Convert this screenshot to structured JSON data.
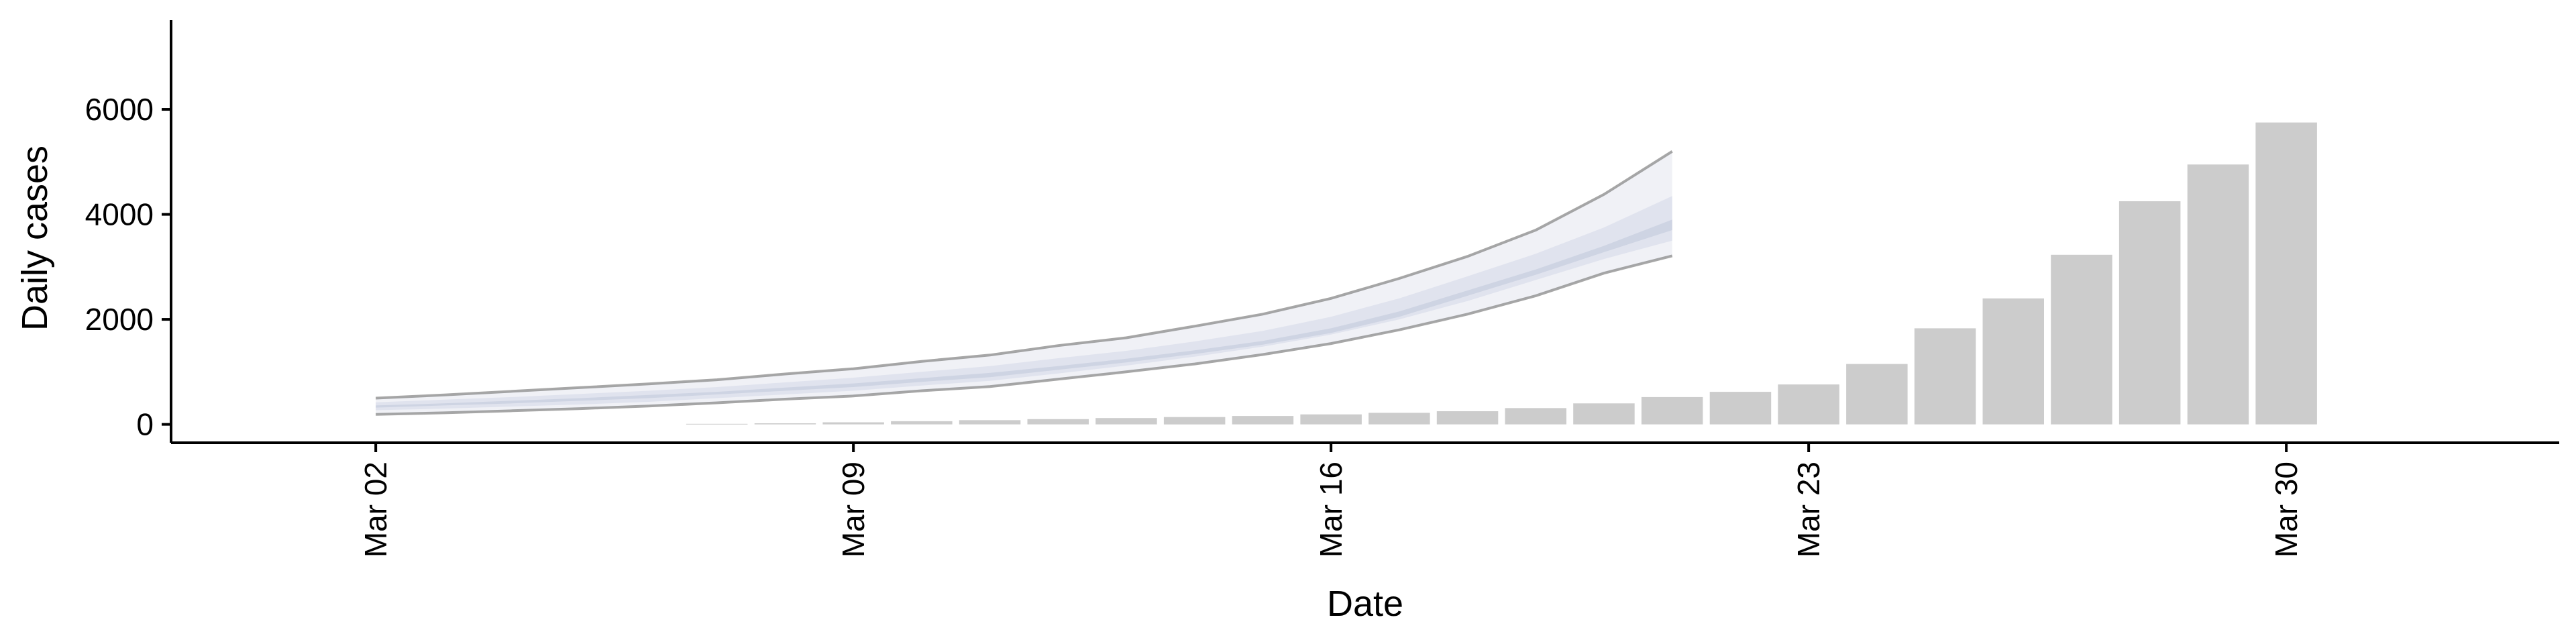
{
  "chart_data": {
    "type": "bar",
    "xlabel": "Date",
    "ylabel": "Daily cases",
    "ylim": [
      -350,
      7700
    ],
    "y_ticks": [
      0,
      2000,
      4000,
      6000
    ],
    "y_tick_labels": [
      "0",
      "2000",
      "4000",
      "6000"
    ],
    "x_ticks": [
      "2020-03-02",
      "2020-03-09",
      "2020-03-16",
      "2020-03-23",
      "2020-03-30"
    ],
    "x_tick_labels": [
      "Mar 02",
      "Mar 09",
      "Mar 16",
      "Mar 23",
      "Mar 30"
    ],
    "x_range": [
      "2020-02-28",
      "2020-04-03"
    ],
    "grid": false,
    "legend": "none",
    "bars": {
      "dates": [
        "2020-03-07",
        "2020-03-08",
        "2020-03-09",
        "2020-03-10",
        "2020-03-11",
        "2020-03-12",
        "2020-03-13",
        "2020-03-14",
        "2020-03-15",
        "2020-03-16",
        "2020-03-17",
        "2020-03-18",
        "2020-03-19",
        "2020-03-20",
        "2020-03-21",
        "2020-03-22",
        "2020-03-23",
        "2020-03-24",
        "2020-03-25",
        "2020-03-26",
        "2020-03-27",
        "2020-03-28",
        "2020-03-29",
        "2020-03-30"
      ],
      "values": [
        10,
        20,
        40,
        60,
        80,
        100,
        120,
        140,
        160,
        190,
        220,
        250,
        310,
        400,
        520,
        620,
        760,
        1150,
        1830,
        2400,
        3230,
        4250,
        4950,
        5750
      ],
      "color": "#cccccc"
    },
    "forecast": {
      "dates": [
        "2020-03-02",
        "2020-03-03",
        "2020-03-04",
        "2020-03-05",
        "2020-03-06",
        "2020-03-07",
        "2020-03-08",
        "2020-03-09",
        "2020-03-10",
        "2020-03-11",
        "2020-03-12",
        "2020-03-13",
        "2020-03-14",
        "2020-03-15",
        "2020-03-16",
        "2020-03-17",
        "2020-03-18",
        "2020-03-19",
        "2020-03-20",
        "2020-03-21"
      ],
      "outer_upper": [
        500,
        560,
        630,
        700,
        770,
        850,
        960,
        1060,
        1200,
        1320,
        1500,
        1650,
        1870,
        2100,
        2400,
        2780,
        3200,
        3700,
        4380,
        5200
      ],
      "outer_lower": [
        190,
        220,
        260,
        300,
        350,
        410,
        480,
        540,
        640,
        720,
        860,
        1000,
        1150,
        1330,
        1540,
        1800,
        2100,
        2450,
        2880,
        3210
      ],
      "mid_upper": [
        420,
        470,
        520,
        580,
        640,
        710,
        800,
        890,
        1000,
        1110,
        1260,
        1400,
        1580,
        1780,
        2050,
        2400,
        2820,
        3250,
        3750,
        4350
      ],
      "mid_lower": [
        270,
        300,
        340,
        380,
        430,
        500,
        570,
        640,
        740,
        830,
        970,
        1120,
        1290,
        1480,
        1710,
        2000,
        2350,
        2750,
        3150,
        3500
      ],
      "inner_upper": [
        360,
        400,
        450,
        500,
        560,
        620,
        700,
        780,
        880,
        980,
        1110,
        1250,
        1410,
        1590,
        1830,
        2150,
        2550,
        2950,
        3400,
        3900
      ],
      "inner_lower": [
        320,
        360,
        400,
        450,
        500,
        570,
        640,
        710,
        810,
        900,
        1040,
        1180,
        1340,
        1520,
        1740,
        2050,
        2450,
        2850,
        3280,
        3700
      ],
      "line_color": "#8a8a8a",
      "outer_band_color": "#eef0f5",
      "mid_band_color": "#dde1ec",
      "inner_band_color": "#c9cfe0"
    },
    "axis_color": "#000000"
  }
}
